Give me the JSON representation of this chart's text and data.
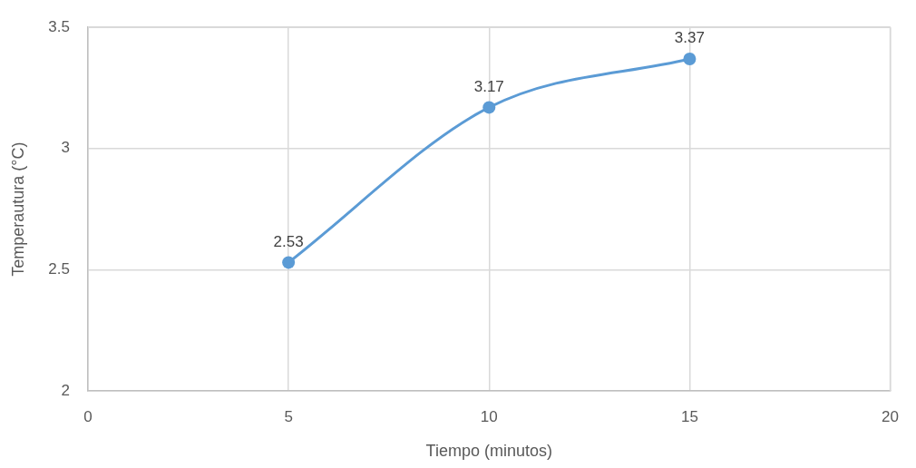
{
  "chart_data": {
    "type": "line",
    "xlabel": "Tiempo (minutos)",
    "ylabel": "Temperautura (°C)",
    "x": [
      5,
      10,
      15
    ],
    "series": [
      {
        "color": "#5b9bd5",
        "values": [
          2.53,
          3.17,
          3.37
        ]
      }
    ],
    "xlim": [
      0,
      20
    ],
    "xticks": [
      0,
      5,
      10,
      15,
      20
    ],
    "ylim": [
      2,
      3.5
    ],
    "yticks": [
      2,
      2.5,
      3,
      3.5
    ],
    "grid": true,
    "marker": "circle",
    "line_style": "solid",
    "data_labels": true
  }
}
